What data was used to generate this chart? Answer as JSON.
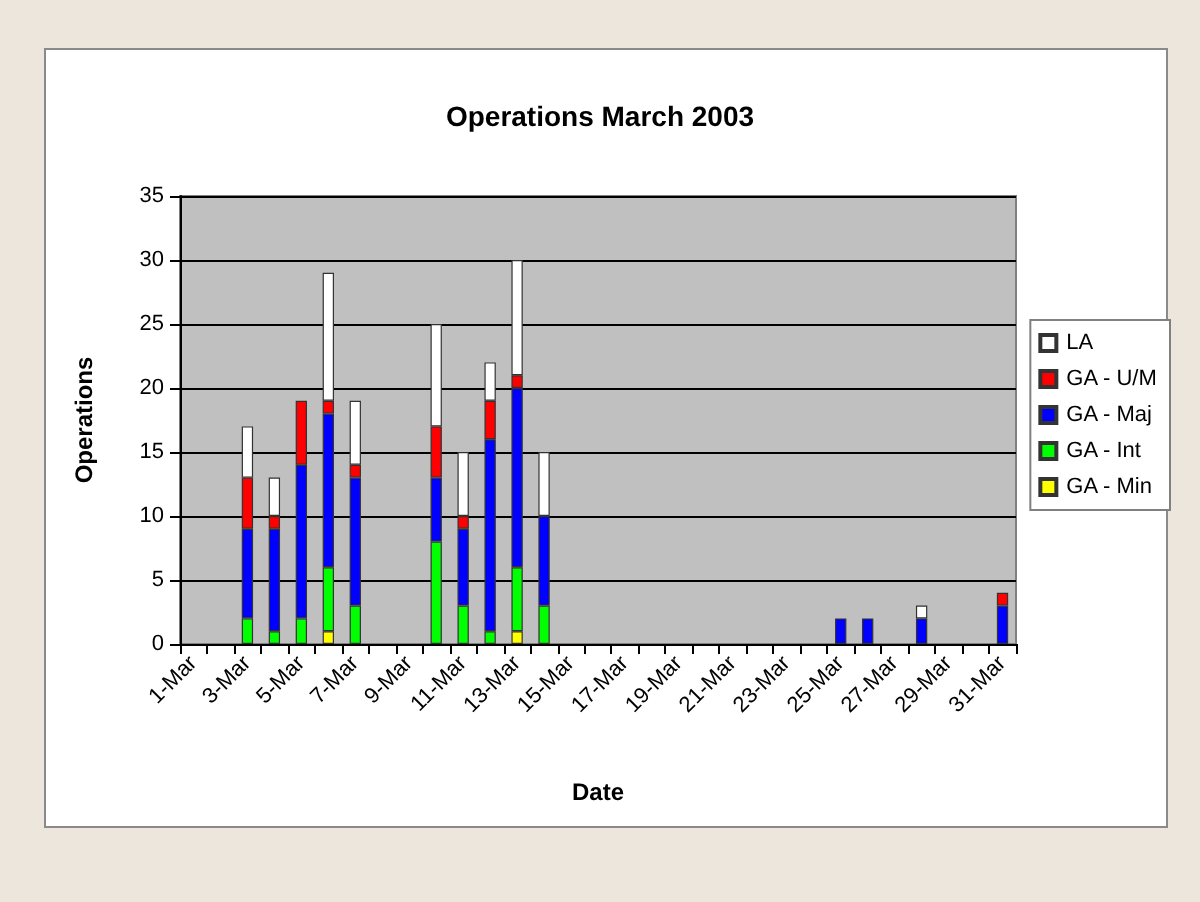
{
  "chart_data": {
    "type": "bar",
    "title": "Operations March 2003",
    "xlabel": "Date",
    "ylabel": "Operations",
    "categories": [
      "1-Mar",
      null,
      "3-Mar",
      null,
      "5-Mar",
      null,
      "7-Mar",
      null,
      "9-Mar",
      null,
      "11-Mar",
      null,
      "13-Mar",
      null,
      "15-Mar",
      null,
      "17-Mar",
      null,
      "19-Mar",
      null,
      "21-Mar",
      null,
      "23-Mar",
      null,
      "25-Mar",
      null,
      "27-Mar",
      null,
      "29-Mar",
      null,
      "31-Mar"
    ],
    "stacked": true,
    "series": [
      {
        "name": "GA - Min",
        "color": "#ffff00",
        "values": [
          0,
          0,
          0,
          0,
          0,
          1,
          0,
          0,
          0,
          0,
          0,
          0,
          1,
          0,
          0,
          0,
          0,
          0,
          0,
          0,
          0,
          0,
          0,
          0,
          0,
          0,
          0,
          0,
          0,
          0,
          0
        ]
      },
      {
        "name": "GA - Int",
        "color": "#00ff00",
        "values": [
          0,
          0,
          2,
          1,
          2,
          5,
          3,
          0,
          0,
          8,
          3,
          1,
          5,
          3,
          0,
          0,
          0,
          0,
          0,
          0,
          0,
          0,
          0,
          0,
          0,
          0,
          0,
          0,
          0,
          0,
          0
        ]
      },
      {
        "name": "GA - Maj",
        "color": "#0000ff",
        "values": [
          0,
          0,
          7,
          8,
          12,
          12,
          10,
          0,
          0,
          5,
          6,
          15,
          14,
          7,
          0,
          0,
          0,
          0,
          0,
          0,
          0,
          0,
          0,
          0,
          2,
          2,
          0,
          2,
          0,
          0,
          3
        ]
      },
      {
        "name": "GA - U/M",
        "color": "#ff0000",
        "values": [
          0,
          0,
          4,
          1,
          5,
          1,
          1,
          0,
          0,
          4,
          1,
          3,
          1,
          0,
          0,
          0,
          0,
          0,
          0,
          0,
          0,
          0,
          0,
          0,
          0,
          0,
          0,
          0,
          0,
          0,
          1
        ]
      },
      {
        "name": "LA",
        "color": "#ffffff",
        "values": [
          0,
          0,
          4,
          3,
          0,
          10,
          5,
          0,
          0,
          8,
          5,
          3,
          9,
          5,
          0,
          0,
          0,
          0,
          0,
          0,
          0,
          0,
          0,
          0,
          0,
          0,
          0,
          1,
          0,
          0,
          0
        ]
      }
    ],
    "ylim": [
      0,
      35
    ],
    "yticks": [
      0,
      5,
      10,
      15,
      20,
      25,
      30,
      35
    ],
    "grid": "y",
    "legend": "right"
  }
}
